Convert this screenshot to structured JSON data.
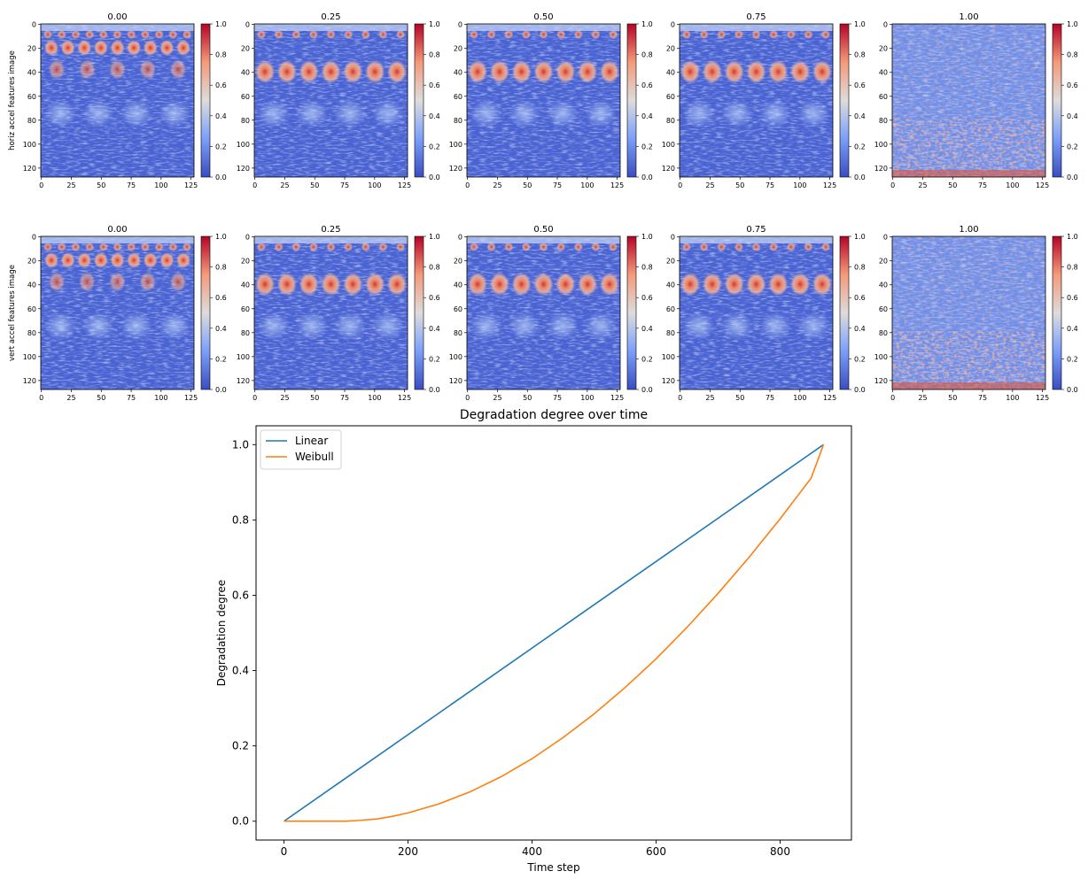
{
  "chart_data": [
    {
      "type": "heatmap",
      "row_label": "horiz accel features image",
      "colorbar": {
        "min": 0.0,
        "max": 1.0,
        "ticks": [
          "0.0",
          "0.2",
          "0.4",
          "0.6",
          "0.8",
          "1.0"
        ],
        "colormap": "coolwarm"
      },
      "x_ticks": [
        "0",
        "25",
        "50",
        "75",
        "100",
        "125"
      ],
      "y_ticks": [
        "0",
        "20",
        "40",
        "60",
        "80",
        "100",
        "120"
      ],
      "xlim": [
        0,
        127
      ],
      "ylim": [
        127,
        0
      ],
      "panels": [
        {
          "title": "0.00"
        },
        {
          "title": "0.25"
        },
        {
          "title": "0.50"
        },
        {
          "title": "0.75"
        },
        {
          "title": "1.00"
        }
      ]
    },
    {
      "type": "heatmap",
      "row_label": "vert accel features image",
      "colorbar": {
        "min": 0.0,
        "max": 1.0,
        "ticks": [
          "0.0",
          "0.2",
          "0.4",
          "0.6",
          "0.8",
          "1.0"
        ],
        "colormap": "coolwarm"
      },
      "x_ticks": [
        "0",
        "25",
        "50",
        "75",
        "100",
        "125"
      ],
      "y_ticks": [
        "0",
        "20",
        "40",
        "60",
        "80",
        "100",
        "120"
      ],
      "xlim": [
        0,
        127
      ],
      "ylim": [
        127,
        0
      ],
      "panels": [
        {
          "title": "0.00"
        },
        {
          "title": "0.25"
        },
        {
          "title": "0.50"
        },
        {
          "title": "0.75"
        },
        {
          "title": "1.00"
        }
      ]
    },
    {
      "type": "line",
      "title": "Degradation degree over time",
      "xlabel": "Time step",
      "ylabel": "Degradation degree",
      "xlim": [
        -45,
        915
      ],
      "ylim": [
        -0.05,
        1.05
      ],
      "x_ticks": [
        0,
        200,
        400,
        600,
        800
      ],
      "x_tick_labels": [
        "0",
        "200",
        "400",
        "600",
        "800"
      ],
      "y_ticks": [
        0.0,
        0.2,
        0.4,
        0.6,
        0.8,
        1.0
      ],
      "y_tick_labels": [
        "0.0",
        "0.2",
        "0.4",
        "0.6",
        "0.8",
        "1.0"
      ],
      "legend_position": "top-left",
      "series": [
        {
          "name": "Linear",
          "color": "#1f77b4",
          "x": [
            0,
            870
          ],
          "y": [
            0.0,
            1.0
          ]
        },
        {
          "name": "Weibull",
          "color": "#ff7f0e",
          "x": [
            0,
            50,
            100,
            120,
            150,
            175,
            200,
            250,
            300,
            350,
            400,
            450,
            500,
            550,
            600,
            650,
            700,
            750,
            800,
            850,
            870
          ],
          "y": [
            0.0,
            0.0,
            0.0,
            0.002,
            0.006,
            0.013,
            0.022,
            0.046,
            0.078,
            0.118,
            0.166,
            0.222,
            0.285,
            0.355,
            0.431,
            0.515,
            0.605,
            0.701,
            0.803,
            0.911,
            1.0
          ]
        }
      ]
    }
  ]
}
